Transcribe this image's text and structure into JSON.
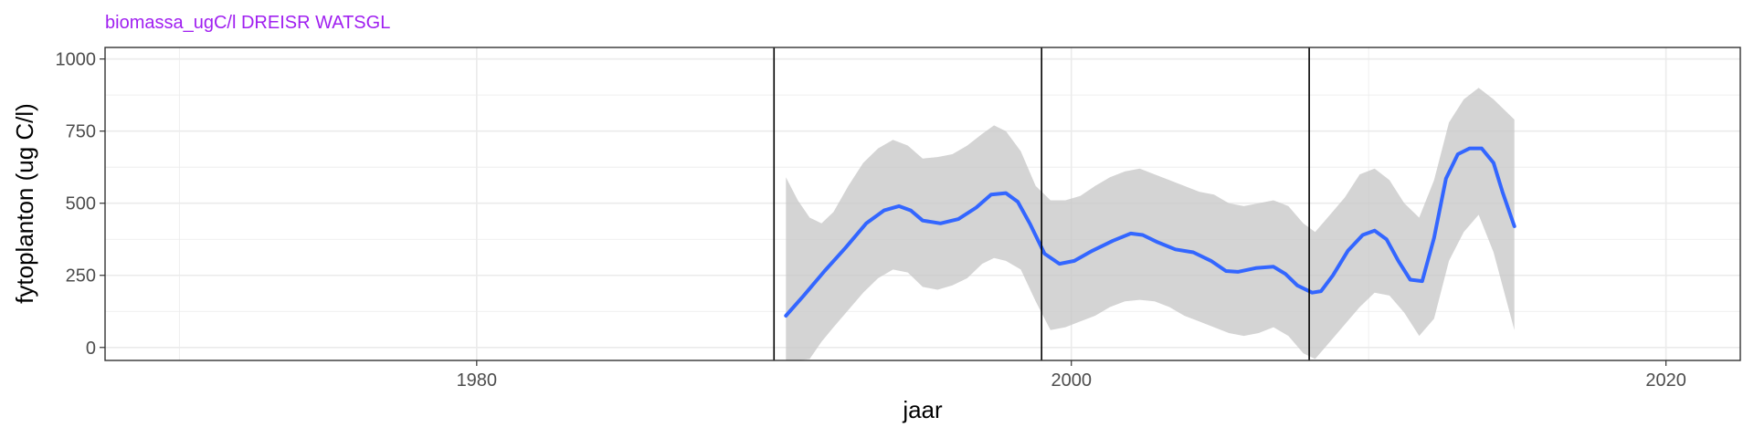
{
  "chart_data": {
    "type": "line",
    "title": "biomassa_ugC/l DREISR WATSGL",
    "xlabel": "jaar",
    "ylabel": "fytoplanton (ug C/l)",
    "xlim": [
      1967.5,
      2022.5
    ],
    "ylim": [
      -45,
      1040
    ],
    "x_ticks": [
      1980,
      2000,
      2020
    ],
    "x_tick_labels": [
      "1980",
      "2000",
      "2020"
    ],
    "y_ticks": [
      0,
      250,
      500,
      750,
      1000
    ],
    "y_tick_labels": [
      "0",
      "250",
      "500",
      "750",
      "1000"
    ],
    "grid": true,
    "legend": "none",
    "vertical_lines": [
      1990,
      1999,
      2008
    ],
    "series": [
      {
        "color": "#3366FF",
        "x": [
          1990.4,
          1991.0,
          1991.7,
          1992.4,
          1993.1,
          1993.7,
          1994.2,
          1994.6,
          1995.0,
          1995.6,
          1996.2,
          1996.8,
          1997.3,
          1997.8,
          1998.2,
          1998.6,
          1999.1,
          1999.6,
          2000.1,
          2000.7,
          2001.4,
          2002.0,
          2002.4,
          2002.9,
          2003.5,
          2004.1,
          2004.7,
          2005.2,
          2005.6,
          2006.2,
          2006.8,
          2007.2,
          2007.6,
          2008.1,
          2008.4,
          2008.8,
          2009.3,
          2009.8,
          2010.2,
          2010.6,
          2011.0,
          2011.4,
          2011.8,
          2012.2,
          2012.6,
          2013.0,
          2013.4,
          2013.8,
          2014.2,
          2014.5,
          2014.9
        ],
        "y": [
          110,
          180,
          265,
          345,
          430,
          475,
          490,
          475,
          440,
          430,
          445,
          485,
          530,
          535,
          505,
          430,
          325,
          290,
          300,
          335,
          370,
          395,
          390,
          365,
          340,
          330,
          300,
          265,
          262,
          275,
          280,
          255,
          215,
          190,
          195,
          250,
          335,
          390,
          405,
          375,
          300,
          235,
          230,
          380,
          585,
          670,
          690,
          690,
          640,
          540,
          420
        ]
      }
    ],
    "band": {
      "color": "#c6c6c6",
      "x": [
        1990.4,
        1990.8,
        1991.2,
        1991.6,
        1992.0,
        1992.5,
        1993.0,
        1993.5,
        1994.0,
        1994.5,
        1995.0,
        1995.5,
        1996.0,
        1996.5,
        1997.0,
        1997.4,
        1997.8,
        1998.3,
        1998.8,
        1999.3,
        1999.8,
        2000.3,
        2000.8,
        2001.3,
        2001.8,
        2002.3,
        2002.8,
        2003.3,
        2003.8,
        2004.3,
        2004.8,
        2005.3,
        2005.8,
        2006.3,
        2006.8,
        2007.3,
        2007.8,
        2008.2,
        2008.7,
        2009.2,
        2009.7,
        2010.2,
        2010.7,
        2011.2,
        2011.7,
        2012.2,
        2012.7,
        2013.2,
        2013.7,
        2014.2,
        2014.9
      ],
      "upper": [
        590,
        510,
        450,
        430,
        470,
        560,
        640,
        690,
        720,
        700,
        655,
        660,
        670,
        700,
        740,
        770,
        750,
        680,
        560,
        510,
        510,
        525,
        560,
        590,
        610,
        620,
        600,
        580,
        560,
        540,
        530,
        500,
        490,
        500,
        510,
        490,
        430,
        400,
        460,
        520,
        600,
        620,
        580,
        500,
        450,
        580,
        780,
        860,
        900,
        860,
        790
      ],
      "lower": [
        -60,
        -60,
        -40,
        20,
        70,
        130,
        190,
        240,
        270,
        260,
        210,
        200,
        215,
        240,
        290,
        310,
        300,
        270,
        160,
        60,
        70,
        90,
        110,
        140,
        160,
        165,
        160,
        140,
        110,
        90,
        70,
        50,
        40,
        50,
        70,
        40,
        -20,
        -40,
        20,
        80,
        140,
        190,
        180,
        120,
        40,
        100,
        300,
        400,
        460,
        330,
        60
      ]
    }
  },
  "colors": {
    "title": "#A020F0",
    "line": "#3366FF",
    "band": "#c6c6c6",
    "grid": "#ebebeb",
    "frame": "#333333",
    "vline": "#000000"
  }
}
